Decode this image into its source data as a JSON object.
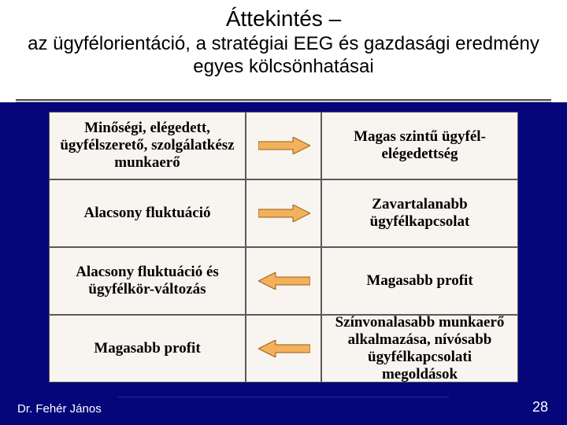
{
  "title": {
    "line1": "Áttekintés –",
    "line2": "az ügyfélorientáció, a stratégiai EEG és gazdasági eredmény egyes kölcsönhatásai"
  },
  "diagram": {
    "type": "flowchart",
    "background_top": "#ffffff",
    "background_bottom": "#05067a",
    "cell_bg": "#f8f5f0",
    "cell_border": "#5a5a5a",
    "cell_fontsize": 19,
    "cell_fontweight": "bold",
    "arrow_fill": "#f2b15a",
    "arrow_stroke": "#9a5a10",
    "rows": [
      {
        "left": "Minőségi, elégedett, ügyfélszerető, szolgálatkész munkaerő",
        "right": "Magas szintű ügyfél-elégedettség",
        "arrow_dir": "right"
      },
      {
        "left": "Alacsony fluktuáció",
        "right": "Zavartalanabb ügyfélkapcsolat",
        "arrow_dir": "right"
      },
      {
        "left": "Alacsony fluktuáció és ügyfélkör-változás",
        "right": "Magasabb profit",
        "arrow_dir": "left"
      },
      {
        "left": "Magasabb profit",
        "right": "Színvonalasabb munkaerő alkalmazása, nívósabb ügyfélkapcsolati megoldások",
        "arrow_dir": "left"
      }
    ]
  },
  "footer": {
    "author": "Dr. Fehér János",
    "page": "28"
  }
}
